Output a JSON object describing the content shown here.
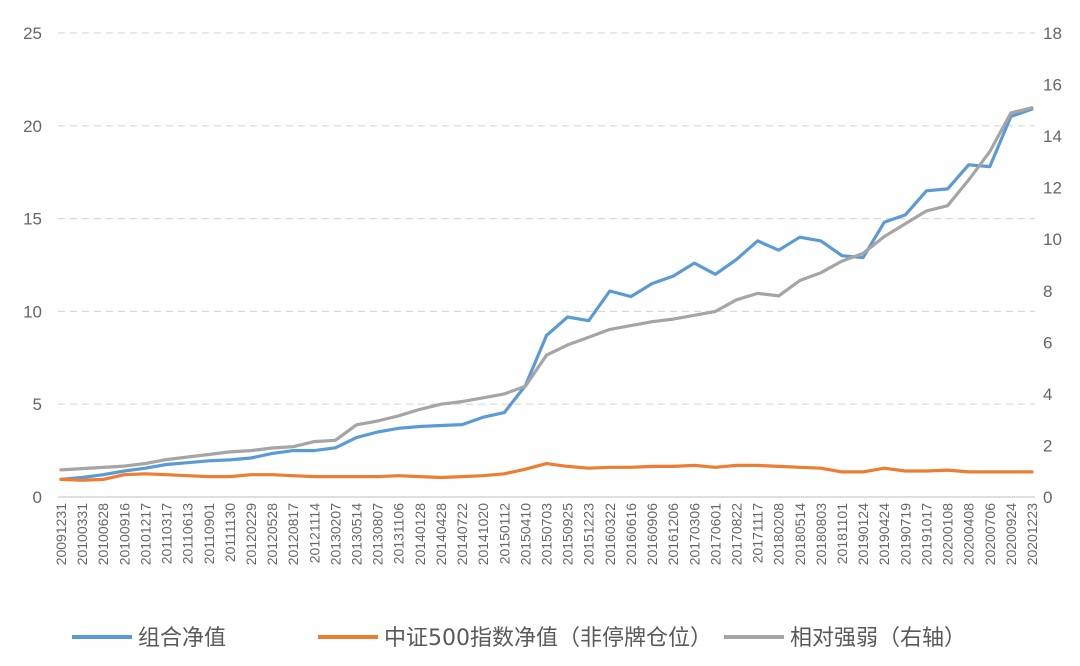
{
  "chart_data": {
    "type": "line",
    "x": [
      "20091231",
      "20100331",
      "20100628",
      "20100916",
      "20101217",
      "20110317",
      "20110613",
      "20110901",
      "20111130",
      "20120229",
      "20120528",
      "20120817",
      "20121114",
      "20130207",
      "20130514",
      "20130807",
      "20131106",
      "20140128",
      "20140428",
      "20140722",
      "20141020",
      "20150112",
      "20150410",
      "20150703",
      "20150925",
      "20151223",
      "20160322",
      "20160616",
      "20160906",
      "20161206",
      "20170306",
      "20170601",
      "20170822",
      "20171117",
      "20180208",
      "20180514",
      "20180803",
      "20181101",
      "20190124",
      "20190424",
      "20190719",
      "20191017",
      "20200108",
      "20200408",
      "20200706",
      "20200924",
      "20201223"
    ],
    "x_tick_labels": [
      "20091231",
      "20100331",
      "20100628",
      "20100916",
      "20101217",
      "20110317",
      "20110613",
      "20110901",
      "20111130",
      "20120229",
      "20120528",
      "20120817",
      "20121114",
      "20130207",
      "20130514",
      "20130807",
      "20131106",
      "20140128",
      "20140428",
      "20140722",
      "20141020",
      "20150112",
      "20150410",
      "20150703",
      "20150925",
      "20151223",
      "20160322",
      "20160616",
      "20160906",
      "20161206",
      "20170306",
      "20170601",
      "20170822",
      "20171117",
      "20180208",
      "20180514",
      "20180803",
      "20181101",
      "20190124",
      "20190424",
      "20190719",
      "20191017",
      "20200108",
      "20200408",
      "20200706",
      "20200924",
      "20201223"
    ],
    "y_left": {
      "min": 0,
      "max": 25,
      "ticks": [
        0,
        5,
        10,
        15,
        20,
        25
      ]
    },
    "y_right": {
      "min": 0,
      "max": 18,
      "ticks": [
        0,
        2,
        4,
        6,
        8,
        10,
        12,
        14,
        16,
        18
      ]
    },
    "grid": "horizontal dashed",
    "legend_position": "bottom",
    "series": [
      {
        "name": "组合净值",
        "axis": "left",
        "color": "#5B9BD5",
        "values": [
          0.95,
          1.05,
          1.2,
          1.4,
          1.55,
          1.75,
          1.85,
          1.95,
          2.0,
          2.1,
          2.35,
          2.5,
          2.5,
          2.65,
          3.2,
          3.5,
          3.7,
          3.8,
          3.85,
          3.9,
          4.3,
          4.55,
          6.0,
          8.7,
          9.7,
          9.5,
          11.1,
          10.8,
          11.5,
          11.9,
          12.6,
          12.0,
          12.8,
          13.8,
          13.3,
          14.0,
          13.8,
          13.0,
          12.9,
          14.8,
          15.2,
          16.5,
          16.6,
          17.9,
          17.8,
          20.5,
          20.9
        ]
      },
      {
        "name": "中证500指数净值（非停牌仓位）",
        "axis": "left",
        "color": "#ED7D31",
        "values": [
          0.95,
          0.9,
          0.95,
          1.2,
          1.25,
          1.2,
          1.15,
          1.1,
          1.1,
          1.2,
          1.2,
          1.15,
          1.1,
          1.1,
          1.1,
          1.1,
          1.15,
          1.1,
          1.05,
          1.1,
          1.15,
          1.25,
          1.5,
          1.8,
          1.65,
          1.55,
          1.6,
          1.6,
          1.65,
          1.65,
          1.7,
          1.6,
          1.7,
          1.7,
          1.65,
          1.6,
          1.55,
          1.35,
          1.35,
          1.55,
          1.4,
          1.4,
          1.45,
          1.35,
          1.35,
          1.35,
          1.35
        ]
      },
      {
        "name": "相对强弱（右轴）",
        "axis": "right",
        "color": "#A5A5A5",
        "values": [
          1.05,
          1.1,
          1.15,
          1.2,
          1.3,
          1.45,
          1.55,
          1.65,
          1.75,
          1.8,
          1.9,
          1.95,
          2.15,
          2.2,
          2.8,
          2.95,
          3.15,
          3.4,
          3.6,
          3.7,
          3.85,
          4.0,
          4.3,
          5.5,
          5.9,
          6.2,
          6.5,
          6.65,
          6.8,
          6.9,
          7.05,
          7.2,
          7.65,
          7.9,
          7.8,
          8.4,
          8.7,
          9.15,
          9.45,
          10.1,
          10.6,
          11.1,
          11.3,
          12.3,
          13.4,
          14.9,
          15.1
        ]
      }
    ]
  }
}
